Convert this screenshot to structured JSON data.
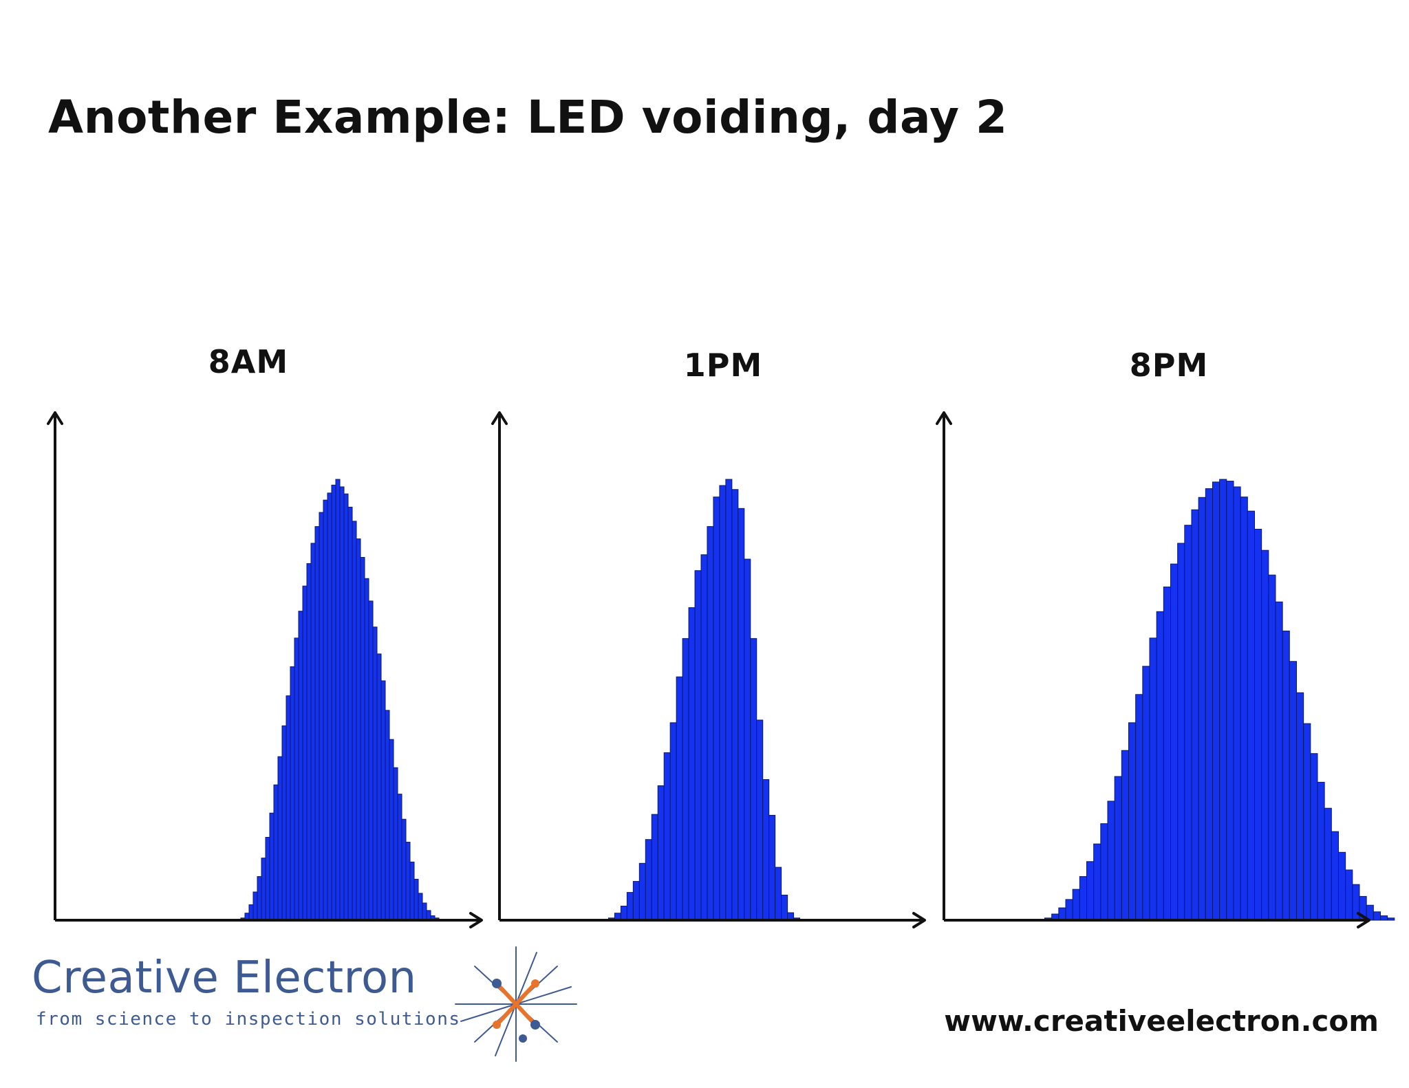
{
  "slide": {
    "title": "Another Example: LED voiding, day 2",
    "website": "www.creativeelectron.com"
  },
  "logo": {
    "name": "Creative Electron",
    "tagline": "from science to inspection solutions",
    "colors": {
      "text": "#3e5a92",
      "star_orange": "#e8732a",
      "star_blue": "#3e5a92"
    }
  },
  "colors": {
    "bar_fill": "#1432f0",
    "bar_stroke": "#0a1a66",
    "axis": "#111111"
  },
  "chart_data": [
    {
      "type": "bar",
      "title": "8AM",
      "xlabel": "",
      "ylabel": "",
      "xlim": [
        0,
        100
      ],
      "ylim": [
        0,
        100
      ],
      "axes_ticks": false,
      "grid": false,
      "bin_start": 45,
      "bin_width": 1,
      "values": [
        0.5,
        1.6,
        3.5,
        6.4,
        9.9,
        14.1,
        18.8,
        24.3,
        30.7,
        37.1,
        44.1,
        50.9,
        57.5,
        64.0,
        70.1,
        75.8,
        80.9,
        85.5,
        89.3,
        92.5,
        95.3,
        96.9,
        98.7,
        100,
        98.3,
        96.7,
        93.7,
        90.5,
        86.5,
        82.3,
        77.5,
        72.4,
        66.5,
        60.4,
        54.3,
        47.6,
        41.0,
        34.6,
        28.6,
        22.9,
        17.7,
        13.2,
        9.3,
        6.1,
        3.9,
        2.2,
        1.0,
        0.5
      ]
    },
    {
      "type": "bar",
      "title": "1PM",
      "xlabel": "",
      "ylabel": "",
      "xlim": [
        0,
        100
      ],
      "ylim": [
        0,
        100
      ],
      "axes_ticks": false,
      "grid": false,
      "bin_start": 26.5,
      "bin_width": 1.5,
      "values": [
        0.5,
        1.6,
        3.2,
        6.3,
        8.8,
        12.9,
        18.3,
        24.0,
        30.5,
        38.0,
        44.8,
        55.2,
        63.9,
        70.9,
        79.3,
        82.9,
        89.3,
        96.0,
        98.6,
        100,
        97.7,
        93.4,
        81.9,
        63.9,
        45.4,
        31.9,
        23.8,
        12.0,
        5.7,
        1.7,
        0.5
      ]
    },
    {
      "type": "bar",
      "title": "8PM",
      "xlabel": "",
      "ylabel": "",
      "xlim": [
        0,
        100
      ],
      "ylim": [
        0,
        100
      ],
      "axes_ticks": false,
      "grid": false,
      "bin_start": 24.5,
      "bin_width": 1.7,
      "values": [
        0.5,
        1.4,
        2.8,
        4.7,
        7.0,
        9.9,
        13.3,
        17.3,
        21.9,
        27.0,
        32.6,
        38.5,
        44.8,
        51.2,
        57.6,
        64.0,
        70.0,
        75.6,
        80.8,
        85.5,
        89.6,
        93.1,
        95.9,
        97.9,
        99.4,
        100,
        99.6,
        98.3,
        96.0,
        92.8,
        88.7,
        83.9,
        78.3,
        72.2,
        65.6,
        58.7,
        51.6,
        44.6,
        37.8,
        31.3,
        25.4,
        20.1,
        15.4,
        11.4,
        8.1,
        5.4,
        3.4,
        1.9,
        1.0,
        0.5
      ]
    }
  ]
}
